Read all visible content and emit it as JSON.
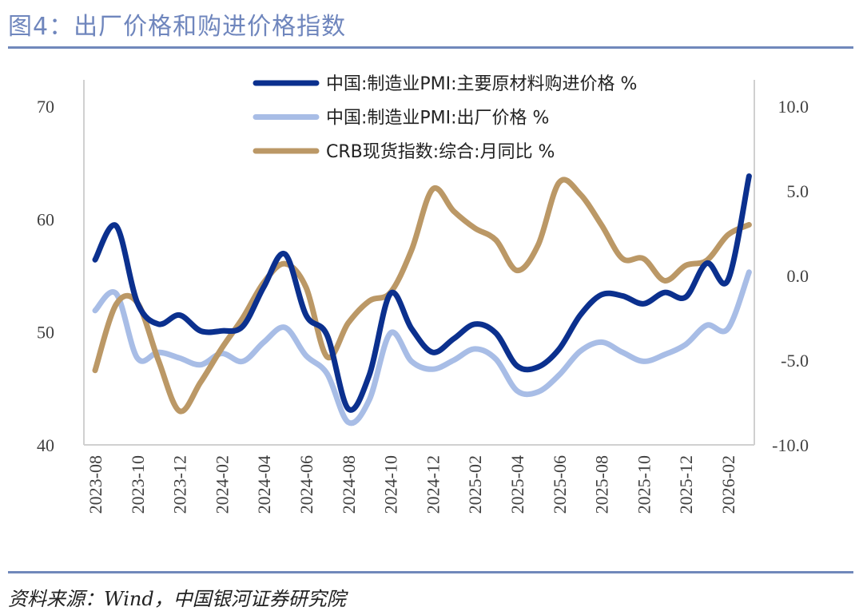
{
  "header": {
    "title": "图4：出厂价格和购进价格指数"
  },
  "footer": {
    "source": "资料来源：Wind，中国银河证券研究院"
  },
  "chart_data": {
    "type": "line",
    "title": "",
    "x": [
      "2023-08",
      "2023-09",
      "2023-10",
      "2023-11",
      "2023-12",
      "2024-01",
      "2024-02",
      "2024-03",
      "2024-04",
      "2024-05",
      "2024-06",
      "2024-07",
      "2024-08",
      "2024-09",
      "2024-10",
      "2024-11",
      "2024-12",
      "2025-01",
      "2025-02",
      "2025-03",
      "2025-04",
      "2025-05",
      "2025-06",
      "2025-07",
      "2025-08",
      "2025-09",
      "2025-10",
      "2025-11",
      "2025-12",
      "2026-01",
      "2026-02",
      "2026-03"
    ],
    "x_tick_labels": [
      "2023-08",
      "2023-10",
      "2023-12",
      "2024-02",
      "2024-04",
      "2024-06",
      "2024-08",
      "2024-10",
      "2024-12",
      "2025-02",
      "2025-04",
      "2025-06",
      "2025-08",
      "2025-10",
      "2025-12",
      "2026-02"
    ],
    "y_left": {
      "range": [
        40,
        70
      ],
      "ticks": [
        "40",
        "50",
        "60",
        "70"
      ]
    },
    "y_right": {
      "range": [
        -10,
        10
      ],
      "ticks": [
        "-10.0",
        "-5.0",
        "0.0",
        "5.0",
        "10.0"
      ]
    },
    "grid": false,
    "legend_position": "top",
    "series": [
      {
        "name": "中国:制造业PMI:主要原材料购进价格 %",
        "axis": "left",
        "color": "#0b308e",
        "values": [
          56.4,
          59.4,
          52.6,
          50.7,
          51.5,
          50.1,
          50.1,
          50.5,
          54.0,
          56.9,
          51.5,
          49.7,
          43.2,
          46.2,
          53.4,
          50.3,
          48.2,
          49.4,
          50.7,
          49.9,
          47.0,
          46.9,
          48.5,
          51.5,
          53.3,
          53.2,
          52.5,
          53.5,
          53.1,
          56.1,
          54.6,
          63.8
        ]
      },
      {
        "name": "中国:制造业PMI:出厂价格 %",
        "axis": "left",
        "color": "#a8bde6",
        "values": [
          51.9,
          53.4,
          47.7,
          48.2,
          47.7,
          47.1,
          48.1,
          47.4,
          49.1,
          50.4,
          47.9,
          46.3,
          42.0,
          44.0,
          49.9,
          47.4,
          46.7,
          47.5,
          48.5,
          47.6,
          44.8,
          44.7,
          46.2,
          48.3,
          49.1,
          48.2,
          47.4,
          48.0,
          48.9,
          50.6,
          50.3,
          55.3
        ]
      },
      {
        "name": "CRB现货指数:综合:月同比 %",
        "axis": "right",
        "color": "#bb9866",
        "values": [
          -5.6,
          -1.7,
          -1.6,
          -5.0,
          -8.0,
          -6.3,
          -4.3,
          -2.5,
          -0.4,
          0.7,
          -0.7,
          -4.8,
          -2.8,
          -1.5,
          -1.0,
          1.5,
          5.1,
          3.8,
          2.8,
          2.1,
          0.3,
          1.8,
          5.5,
          4.8,
          3.0,
          1.0,
          1.0,
          -0.3,
          0.6,
          0.9,
          2.4,
          3.0
        ]
      }
    ]
  }
}
